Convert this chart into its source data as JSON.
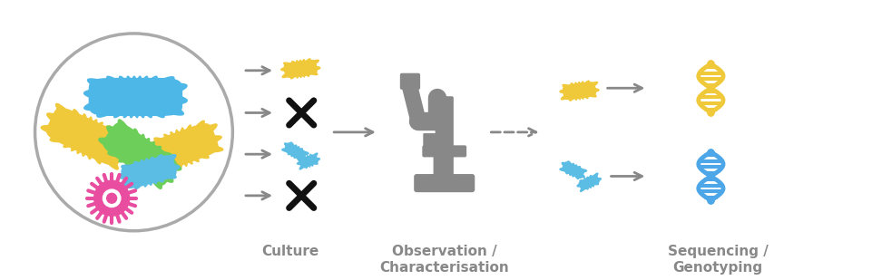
{
  "background_color": "#ffffff",
  "circle_color": "#aaaaaa",
  "arrow_color": "#888888",
  "text_color": "#888888",
  "label_culture": "Culture",
  "label_observation": "Observation /\nCharacterisation",
  "label_sequencing": "Sequencing /\nGenotyping",
  "bacteria_colors": {
    "blue": "#4db8e8",
    "yellow": "#f0c93a",
    "green": "#6dcf5a",
    "pink": "#e84da0",
    "light_blue": "#5bbce4"
  },
  "font_size_labels": 11,
  "dna_yellow": "#f0c93a",
  "dna_blue": "#4da6e8",
  "microscope_color": "#888888",
  "x_color": "#111111"
}
